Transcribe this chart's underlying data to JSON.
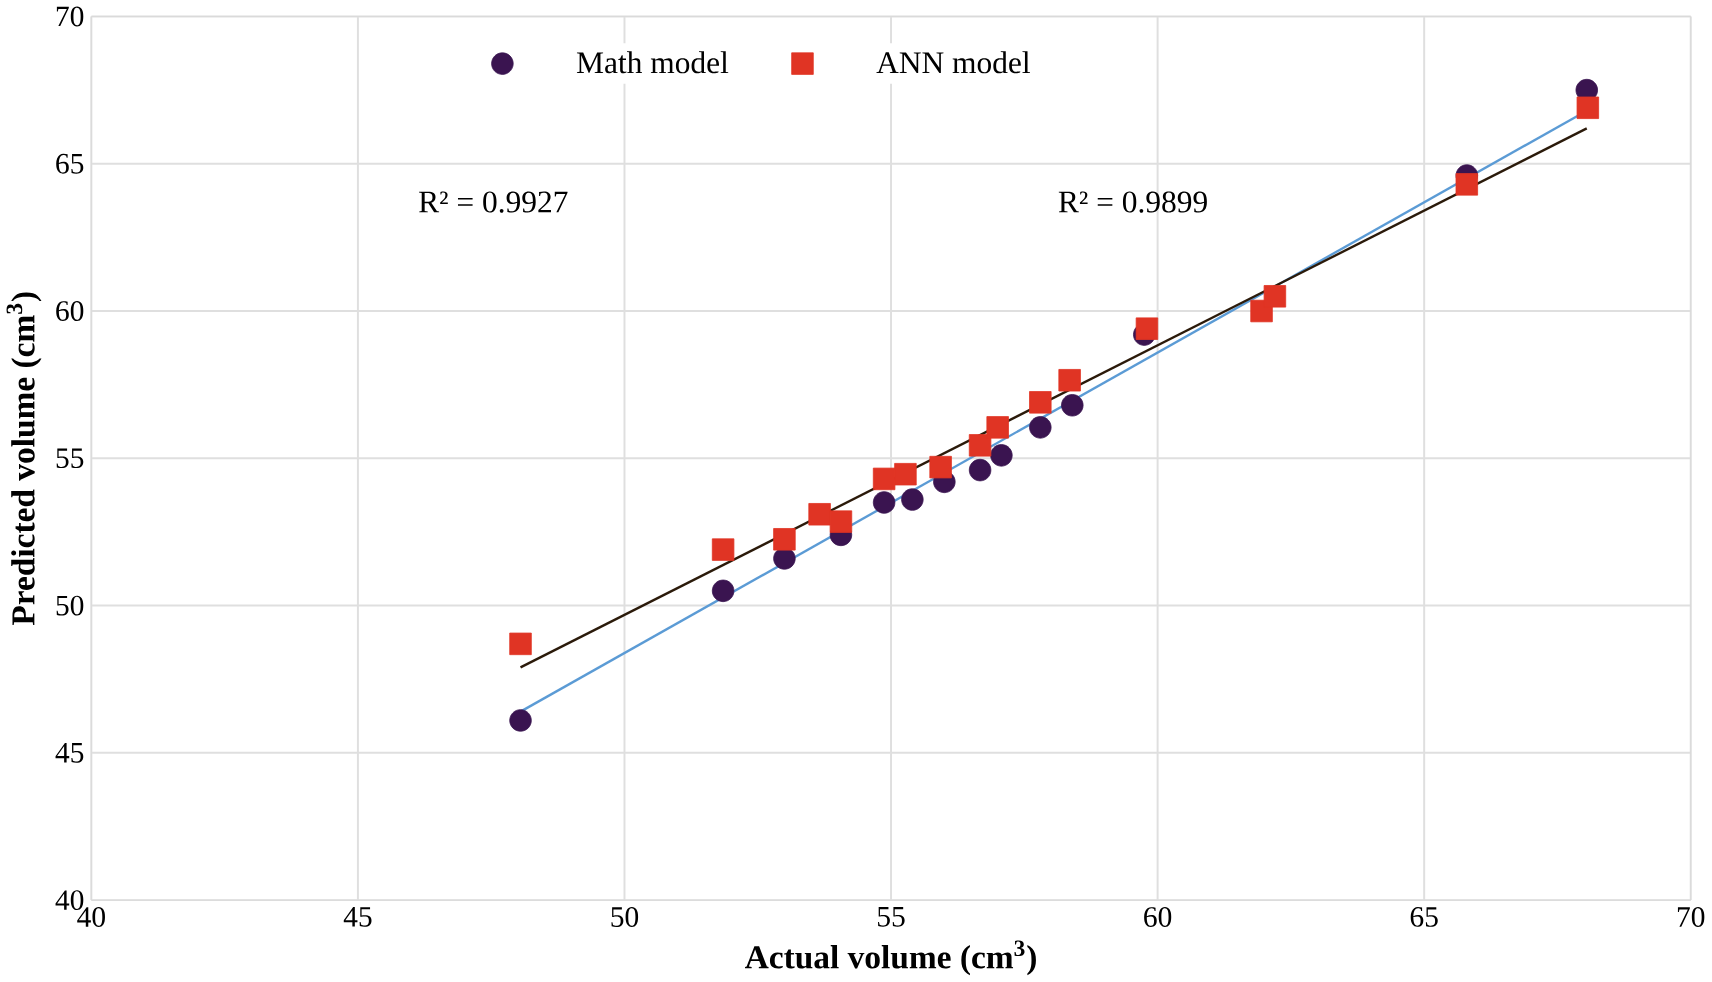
{
  "chart_data": {
    "type": "scatter",
    "xlabel": "Actual volume (cm$^{3}$)",
    "ylabel": "Predicted volume (cm$^{3}$)",
    "series": [
      {
        "name": "Math model",
        "color": "#3a1450",
        "marker": "circle",
        "x": [
          48.05,
          51.85,
          53.0,
          54.06,
          54.87,
          55.4,
          56.0,
          56.67,
          57.07,
          57.8,
          58.4,
          59.75,
          62.2,
          65.8,
          68.05
        ],
        "values": [
          46.1,
          50.5,
          51.6,
          52.4,
          53.5,
          53.6,
          54.2,
          54.6,
          55.1,
          56.05,
          56.8,
          59.2,
          null,
          64.6,
          67.5
        ]
      },
      {
        "name": "ANN model",
        "color": "#e03424",
        "marker": "square",
        "x": [
          48.05,
          51.85,
          53.0,
          53.66,
          54.06,
          54.87,
          55.27,
          55.93,
          56.67,
          57.0,
          57.8,
          58.35,
          59.8,
          61.95,
          62.2,
          65.8,
          68.07
        ],
        "values": [
          48.7,
          51.9,
          52.25,
          53.1,
          52.85,
          54.3,
          54.46,
          54.7,
          55.44,
          56.05,
          56.9,
          57.65,
          59.4,
          60.0,
          60.5,
          64.3,
          66.9
        ]
      },
      {
        "type": "line",
        "color": "#5b9bd5",
        "x": [
          48.05,
          68.05
        ],
        "values": [
          46.4,
          66.8
        ]
      },
      {
        "type": "line",
        "color": "#2b1a0a",
        "x": [
          48.05,
          68.05
        ],
        "values": [
          47.9,
          66.2
        ]
      }
    ],
    "annotations": [
      "R² = 0.9927",
      "R² = 0.9899"
    ],
    "xlim": [
      40,
      70
    ],
    "ylim": [
      40,
      70
    ],
    "xticks": [
      40,
      45,
      50,
      55,
      60,
      65,
      70
    ],
    "yticks": [
      40,
      45,
      50,
      55,
      60,
      65,
      70
    ],
    "grid": true,
    "legend": "top"
  }
}
